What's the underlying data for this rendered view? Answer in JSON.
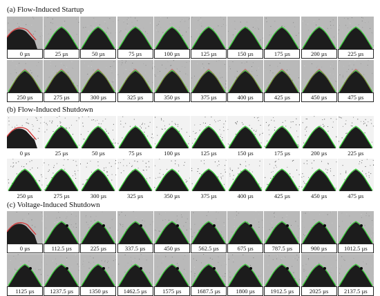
{
  "sections": [
    {
      "title": "(a) Flow-Induced Startup",
      "variant": "startup",
      "rows": [
        [
          "0 µs",
          "25 µs",
          "50 µs",
          "75 µs",
          "100 µs",
          "125 µs",
          "150 µs",
          "175 µs",
          "200 µs",
          "225 µs"
        ],
        [
          "250 µs",
          "275 µs",
          "300 µs",
          "325 µs",
          "350 µs",
          "375 µs",
          "400 µs",
          "425 µs",
          "450 µs",
          "475 µs"
        ]
      ]
    },
    {
      "title": "(b) Flow-Induced Shutdown",
      "variant": "flow-shutdown",
      "rows": [
        [
          "0 µs",
          "25 µs",
          "50 µs",
          "75 µs",
          "100 µs",
          "125 µs",
          "150 µs",
          "175 µs",
          "200 µs",
          "225 µs"
        ],
        [
          "250 µs",
          "275 µs",
          "300 µs",
          "325 µs",
          "350 µs",
          "375 µs",
          "400 µs",
          "425 µs",
          "450 µs",
          "475 µs"
        ]
      ]
    },
    {
      "title": "(c) Voltage-Induced Shutdown",
      "variant": "voltage-shutdown",
      "rows": [
        [
          "0 µs",
          "112.5 µs",
          "225 µs",
          "337.5 µs",
          "450 µs",
          "562.5 µs",
          "675 µs",
          "787.5 µs",
          "900 µs",
          "1012.5 µs"
        ],
        [
          "1125 µs",
          "1237.5 µs",
          "1350 µs",
          "1462.5 µs",
          "1575 µs",
          "1687.5 µs",
          "1800 µs",
          "1912.5 µs",
          "2025 µs",
          "2137.5 µs"
        ]
      ]
    }
  ],
  "colors": {
    "background_gray": "#b9b9b9",
    "cone_dark": "#1c1c1c",
    "contour_green": "#2fd12f",
    "contour_red": "#d23a3a",
    "flow_shutdown_background": "#f2f2f2"
  }
}
